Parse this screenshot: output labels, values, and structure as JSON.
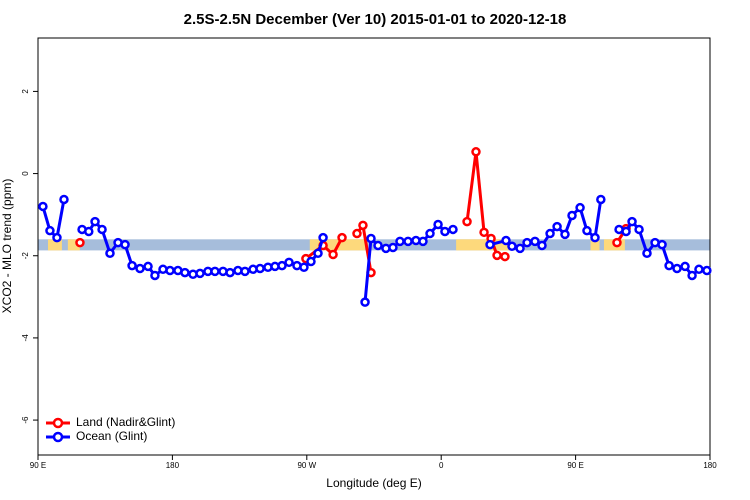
{
  "chart_data": {
    "type": "line",
    "title": "2.5S-2.5N December (Ver 10)   2015-01-01 to 2020-12-18",
    "x_label": "Longitude (deg E)",
    "y_label": "XCO2 - MLO trend (ppm)",
    "xlim": [
      90,
      540
    ],
    "xticks": [
      {
        "value": 90,
        "label": "90 E"
      },
      {
        "value": 180,
        "label": "180"
      },
      {
        "value": 270,
        "label": "90 W"
      },
      {
        "value": 360,
        "label": "0"
      },
      {
        "value": 450,
        "label": "90 E"
      },
      {
        "value": 540,
        "label": "180"
      }
    ],
    "ylim": [
      -6.85,
      3.3
    ],
    "yticks": [
      -6,
      -4,
      -2,
      0,
      2
    ],
    "legend": "bottom-left",
    "band": {
      "range": [
        -1.87,
        -1.6
      ],
      "color": "#a6bddb",
      "highlight_color": "#fdd97c",
      "highlight_x": [
        [
          96.7,
          106
        ],
        [
          110,
          118
        ],
        [
          272,
          309
        ],
        [
          370,
          406
        ],
        [
          460,
          466
        ],
        [
          469,
          483
        ]
      ]
    },
    "series": [
      {
        "name": "Land (Nadir&Glint)",
        "color": "#ff0000",
        "x": [
          118.1,
          null,
          269.4,
          280.9,
          287.6,
          293.6,
          null,
          303.6,
          307.6,
          313,
          null,
          377.3,
          383.3,
          388.7,
          393.4,
          397.4,
          402.7,
          null,
          477.7,
          483.8
        ],
        "values": [
          -1.68,
          null,
          -2.07,
          -1.75,
          -1.97,
          -1.56,
          null,
          -1.46,
          -1.26,
          -2.41,
          null,
          -1.17,
          0.53,
          -1.43,
          -1.58,
          -1.99,
          -2.02,
          null,
          -1.68,
          -1.34
        ]
      },
      {
        "name": "Ocean (Glint)",
        "color": "#0000ff",
        "x": [
          93.3,
          98,
          102.7,
          107.4,
          null,
          119.5,
          124,
          128.2,
          132.9,
          138.2,
          143.6,
          148.3,
          153,
          158.3,
          163.7,
          168.3,
          173.7,
          178.4,
          183.7,
          188.4,
          193.8,
          198.5,
          203.8,
          208.5,
          213.9,
          218.6,
          223.9,
          228.6,
          234,
          238.7,
          244,
          248.7,
          253.4,
          258.1,
          263.4,
          268.1,
          272.8,
          277.5,
          280.9,
          null,
          309,
          313,
          317.7,
          323,
          327.7,
          332.4,
          337.8,
          343.1,
          347.8,
          352.5,
          357.9,
          362.5,
          367.9,
          null,
          392.7,
          403.4,
          407.4,
          412.8,
          417.5,
          422.8,
          427.5,
          432.9,
          437.6,
          442.9,
          447.6,
          453,
          457.6,
          463,
          466.9,
          null,
          479.1,
          483.8,
          487.8,
          492.5,
          497.8,
          503.2,
          507.9,
          512.6,
          517.9,
          523.3,
          528,
          532.6,
          537.9
        ],
        "values": [
          -0.8,
          -1.39,
          -1.56,
          -0.63,
          null,
          -1.36,
          -1.41,
          -1.17,
          -1.36,
          -1.94,
          -1.68,
          -1.73,
          -2.24,
          -2.31,
          -2.26,
          -2.48,
          -2.33,
          -2.36,
          -2.36,
          -2.41,
          -2.45,
          -2.43,
          -2.38,
          -2.38,
          -2.38,
          -2.41,
          -2.36,
          -2.38,
          -2.33,
          -2.31,
          -2.28,
          -2.26,
          -2.24,
          -2.16,
          -2.24,
          -2.28,
          -2.14,
          -1.94,
          -1.56,
          null,
          -3.13,
          -1.58,
          -1.75,
          -1.82,
          -1.8,
          -1.65,
          -1.65,
          -1.63,
          -1.65,
          -1.46,
          -1.24,
          -1.41,
          -1.36,
          null,
          -1.73,
          -1.63,
          -1.77,
          -1.82,
          -1.68,
          -1.65,
          -1.75,
          -1.46,
          -1.29,
          -1.48,
          -1.02,
          -0.83,
          -1.39,
          -1.56,
          -0.63,
          null,
          -1.36,
          -1.41,
          -1.17,
          -1.36,
          -1.94,
          -1.68,
          -1.73,
          -2.24,
          -2.31,
          -2.26,
          -2.48,
          -2.33,
          -2.36
        ]
      }
    ]
  }
}
